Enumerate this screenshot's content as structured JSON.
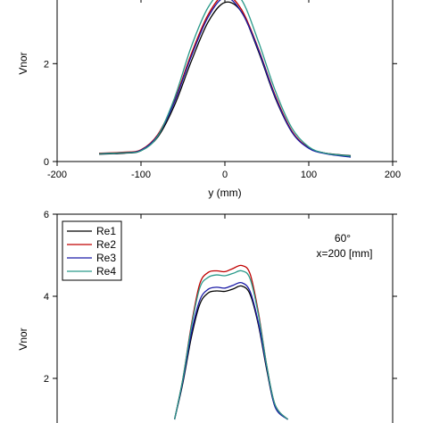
{
  "chart_data": [
    {
      "type": "line",
      "title": "",
      "xlabel": "y (mm)",
      "ylabel": "Vnor",
      "xlim": [
        -200,
        200
      ],
      "ylim": [
        0,
        3.3
      ],
      "x_ticks": [
        -200,
        -100,
        0,
        100,
        200
      ],
      "x_tick_labels": [
        "-200",
        "-100",
        "0",
        "100",
        "200"
      ],
      "y_ticks": [
        0,
        2
      ],
      "y_tick_labels": [
        "0",
        "2"
      ],
      "grid": false,
      "legend": "none",
      "series": [
        {
          "color": "#000000",
          "x": [
            -150,
            -120,
            -100,
            -80,
            -60,
            -40,
            -20,
            0,
            20,
            40,
            60,
            80,
            100,
            120,
            150
          ],
          "y": [
            0.15,
            0.17,
            0.22,
            0.5,
            1.15,
            2.05,
            2.85,
            3.25,
            3.05,
            2.25,
            1.3,
            0.6,
            0.28,
            0.17,
            0.12
          ]
        },
        {
          "color": "#c00000",
          "x": [
            -150,
            -120,
            -100,
            -80,
            -60,
            -40,
            -20,
            0,
            20,
            40,
            60,
            80,
            100,
            120,
            150
          ],
          "y": [
            0.17,
            0.19,
            0.24,
            0.55,
            1.25,
            2.2,
            3.0,
            3.4,
            3.1,
            2.3,
            1.35,
            0.62,
            0.28,
            0.17,
            0.1
          ]
        },
        {
          "color": "#1a1aa6",
          "x": [
            -150,
            -120,
            -100,
            -80,
            -60,
            -40,
            -20,
            0,
            20,
            40,
            60,
            80,
            100,
            120,
            150
          ],
          "y": [
            0.16,
            0.18,
            0.23,
            0.53,
            1.22,
            2.15,
            2.95,
            3.35,
            3.05,
            2.28,
            1.32,
            0.6,
            0.27,
            0.16,
            0.09
          ]
        },
        {
          "color": "#2a9a8a",
          "x": [
            -150,
            -120,
            -100,
            -80,
            -60,
            -40,
            -20,
            0,
            20,
            40,
            60,
            80,
            100,
            120,
            150
          ],
          "y": [
            0.16,
            0.18,
            0.22,
            0.52,
            1.3,
            2.35,
            3.15,
            3.5,
            3.3,
            2.45,
            1.45,
            0.68,
            0.3,
            0.17,
            0.11
          ]
        }
      ]
    },
    {
      "type": "line",
      "title": "",
      "xlabel": "",
      "ylabel": "Vnor",
      "annotation": [
        "60°",
        "x=200 [mm]"
      ],
      "ylim": [
        1.0,
        6
      ],
      "xlim": [
        -200,
        200
      ],
      "y_ticks": [
        2,
        4,
        6
      ],
      "y_tick_labels": [
        "2",
        "4",
        "6"
      ],
      "grid": false,
      "legend": "top-left",
      "series": [
        {
          "name": "Re1",
          "color": "#000000",
          "x": [
            -60,
            -50,
            -40,
            -30,
            -20,
            -10,
            0,
            10,
            20,
            30,
            40,
            50,
            60,
            75
          ],
          "y": [
            1.0,
            1.9,
            3.0,
            3.8,
            4.08,
            4.13,
            4.12,
            4.18,
            4.25,
            4.05,
            3.3,
            2.2,
            1.3,
            1.0
          ]
        },
        {
          "name": "Re2",
          "color": "#c00000",
          "x": [
            -60,
            -50,
            -40,
            -30,
            -20,
            -10,
            0,
            10,
            20,
            30,
            40,
            50,
            60,
            75
          ],
          "y": [
            1.0,
            2.0,
            3.3,
            4.3,
            4.58,
            4.62,
            4.6,
            4.68,
            4.75,
            4.55,
            3.6,
            2.3,
            1.35,
            1.0
          ]
        },
        {
          "name": "Re3",
          "color": "#1a1aa6",
          "x": [
            -60,
            -50,
            -40,
            -30,
            -20,
            -10,
            0,
            10,
            20,
            30,
            40,
            50,
            60,
            75
          ],
          "y": [
            1.0,
            1.95,
            3.1,
            3.9,
            4.17,
            4.22,
            4.2,
            4.27,
            4.33,
            4.12,
            3.35,
            2.25,
            1.3,
            1.0
          ]
        },
        {
          "name": "Re4",
          "color": "#2a9a8a",
          "x": [
            -60,
            -50,
            -40,
            -30,
            -20,
            -10,
            0,
            10,
            20,
            30,
            40,
            50,
            60,
            75
          ],
          "y": [
            1.0,
            2.0,
            3.25,
            4.2,
            4.46,
            4.52,
            4.5,
            4.56,
            4.62,
            4.43,
            3.55,
            2.3,
            1.35,
            1.0
          ]
        }
      ]
    }
  ]
}
